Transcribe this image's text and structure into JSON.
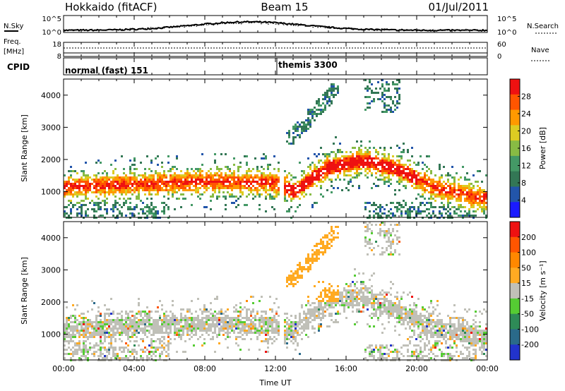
{
  "header": {
    "title": "Hokkaido (fitACF)",
    "beam": "Beam 15",
    "date": "01/Jul/2011"
  },
  "top_panels": {
    "nsky": {
      "left_label": "N.Sky",
      "right_label": "N.Search",
      "left_ticks": [
        "10^5",
        "10^0"
      ],
      "right_ticks": [
        "10^5",
        "10^0"
      ]
    },
    "freq": {
      "left_label_1": "Freq.",
      "left_label_2": "[MHz]",
      "left_ticks": [
        "18",
        "8"
      ],
      "right_ticks": [
        "60",
        "0"
      ],
      "right_label": "Nave"
    },
    "cpid": {
      "label": "CPID",
      "segments": [
        "normal (fast) 151",
        "themis 3300"
      ]
    }
  },
  "x_axis": {
    "label": "Time UT",
    "ticks": [
      "00:00",
      "04:00",
      "08:00",
      "12:00",
      "16:00",
      "20:00",
      "00:00"
    ]
  },
  "colors": {
    "power_scale": [
      "#1a1aff",
      "#2255aa",
      "#337755",
      "#449966",
      "#88bb44",
      "#ddcc22",
      "#ff9900",
      "#ff5500",
      "#ee1111"
    ],
    "velocity_scale": [
      "#2233cc",
      "#2a6a8a",
      "#2e8b57",
      "#55cc33",
      "#c0c0b8",
      "#ffaa22",
      "#ff8800",
      "#ff5500",
      "#ee1111"
    ]
  },
  "chart_data": [
    {
      "type": "heatmap",
      "panel": "power",
      "ylabel": "Slant Range [km]",
      "ylim": [
        200,
        4500
      ],
      "xlim": [
        0,
        24
      ],
      "yticks": [
        "1000",
        "2000",
        "3000",
        "4000"
      ],
      "colorbar": {
        "label": "Power [dB]",
        "ticks": [
          "28",
          "24",
          "20",
          "16",
          "12",
          "8",
          "4"
        ]
      },
      "bands": [
        {
          "x": [
            0,
            3,
            6,
            9,
            12,
            13,
            15,
            17,
            19,
            21,
            24
          ],
          "y": [
            1150,
            1250,
            1300,
            1350,
            1300,
            1050,
            1800,
            2000,
            1700,
            1150,
            800
          ]
        },
        {
          "x": [
            0,
            4,
            8,
            12
          ],
          "y": [
            800,
            850,
            900,
            900
          ]
        }
      ]
    },
    {
      "type": "heatmap",
      "panel": "velocity",
      "ylabel": "Slant Range [km]",
      "ylim": [
        200,
        4500
      ],
      "xlim": [
        0,
        24
      ],
      "yticks": [
        "1000",
        "2000",
        "3000",
        "4000"
      ],
      "colorbar": {
        "label": "Velocity [m s⁻¹]",
        "ticks": [
          "200",
          "100",
          "50",
          "15",
          "-15",
          "-50",
          "-100",
          "-200"
        ]
      },
      "bands": [
        {
          "x": [
            0,
            3,
            6,
            9,
            12,
            13,
            15,
            17,
            19,
            21,
            24
          ],
          "y": [
            1150,
            1250,
            1300,
            1350,
            1300,
            1100,
            2100,
            2200,
            1700,
            1200,
            900
          ]
        }
      ]
    }
  ]
}
